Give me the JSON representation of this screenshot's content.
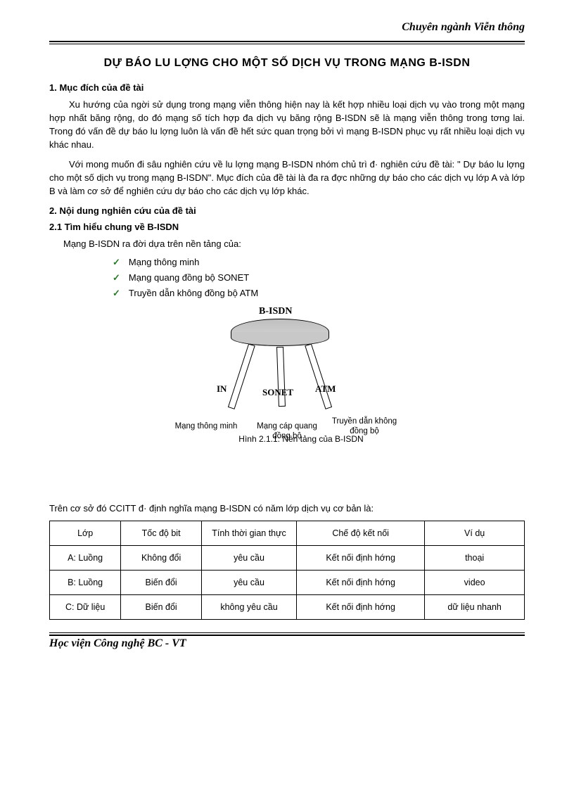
{
  "header": {
    "text": "Chuyên ngành Viễn thông"
  },
  "title": "DỰ BÁO LU   LỢNG   CHO MỘT SỐ DỊCH VỤ TRONG MẠNG B-ISDN",
  "s1": {
    "head": "1. Mục đích của đề tài",
    "p1": "Xu hướng  của ngời  sử dụng trong mạng viễn thông hiện nay là kết hợp nhiều loại dịch vụ vào trong một mạng hợp nhất băng rộng, do đó mạng số tích hợp đa dịch vụ băng rộng B-ISDN sẽ là mạng viễn thông trong tơng  lai. Trong đó vấn đề dự báo lu  lợng  luôn là vấn đề hết sức quan trọng bởi vì mạng B-ISDN phục vụ rất nhiều loại dịch vụ khác nhau.",
    "p2": "Với mong muốn đi sâu nghiên cứu về lu  lợng  mạng B-ISDN nhóm chủ trì đ· nghiên cứu đề tài: \" Dự báo lu  lợng  cho một số dịch vụ trong mạng B-ISDN\". Mục đích của đề tài là đa  ra đợc  những dự báo cho các dịch vụ lớp A và lớp B và làm cơ sở để nghiên cứu dự báo cho các dịch vụ lớp khác."
  },
  "s2": {
    "head": "2. Nội dung nghiên cứu của đề tài",
    "sub": "2.1 Tìm hiểu chung về B-ISDN",
    "intro": "Mạng B-ISDN ra đời dựa trên nền tảng của:",
    "bullets": [
      "Mạng thông minh",
      "Mạng quang đồng bộ SONET",
      "Truyền dẫn không đồng bộ ATM"
    ]
  },
  "diagram": {
    "type": "infographic",
    "top_label": "B-ISDN",
    "leg_labels": [
      "IN",
      "SONET",
      "ATM"
    ],
    "foot_labels": [
      "Mạng thông minh",
      "Mạng cáp quang đồng bộ",
      "Truyền dẫn không đồng bộ"
    ],
    "caption": "Hình 2.1.1: Nền tảng của B-ISDN",
    "seat_fill": "#c8c8c8",
    "border_color": "#000000",
    "background_color": "#ffffff"
  },
  "table_intro": "Trên cơ sở đó CCITT đ· định nghĩa mạng B-ISDN có năm  lớp dịch vụ cơ bản là:",
  "table": {
    "type": "table",
    "columns": [
      "Lớp",
      "Tốc độ bit",
      "Tính thời gian thực",
      "Chế độ kết nối",
      "Ví dụ"
    ],
    "rows": [
      [
        "A: Luồng",
        "Không đổi",
        "yêu cầu",
        "Kết nối định hớng",
        "thoại"
      ],
      [
        "B: Luồng",
        "Biến đổi",
        "yêu cầu",
        "Kết nối định hớng",
        "video"
      ],
      [
        "C: Dữ liệu",
        "Biến đổi",
        "không yêu cầu",
        "Kết nối định hớng",
        "dữ liệu nhanh"
      ]
    ],
    "border_color": "#000000",
    "col_widths_pct": [
      15,
      17,
      20,
      27,
      21
    ]
  },
  "footer": {
    "text": "Học viện Công nghệ BC - VT"
  }
}
